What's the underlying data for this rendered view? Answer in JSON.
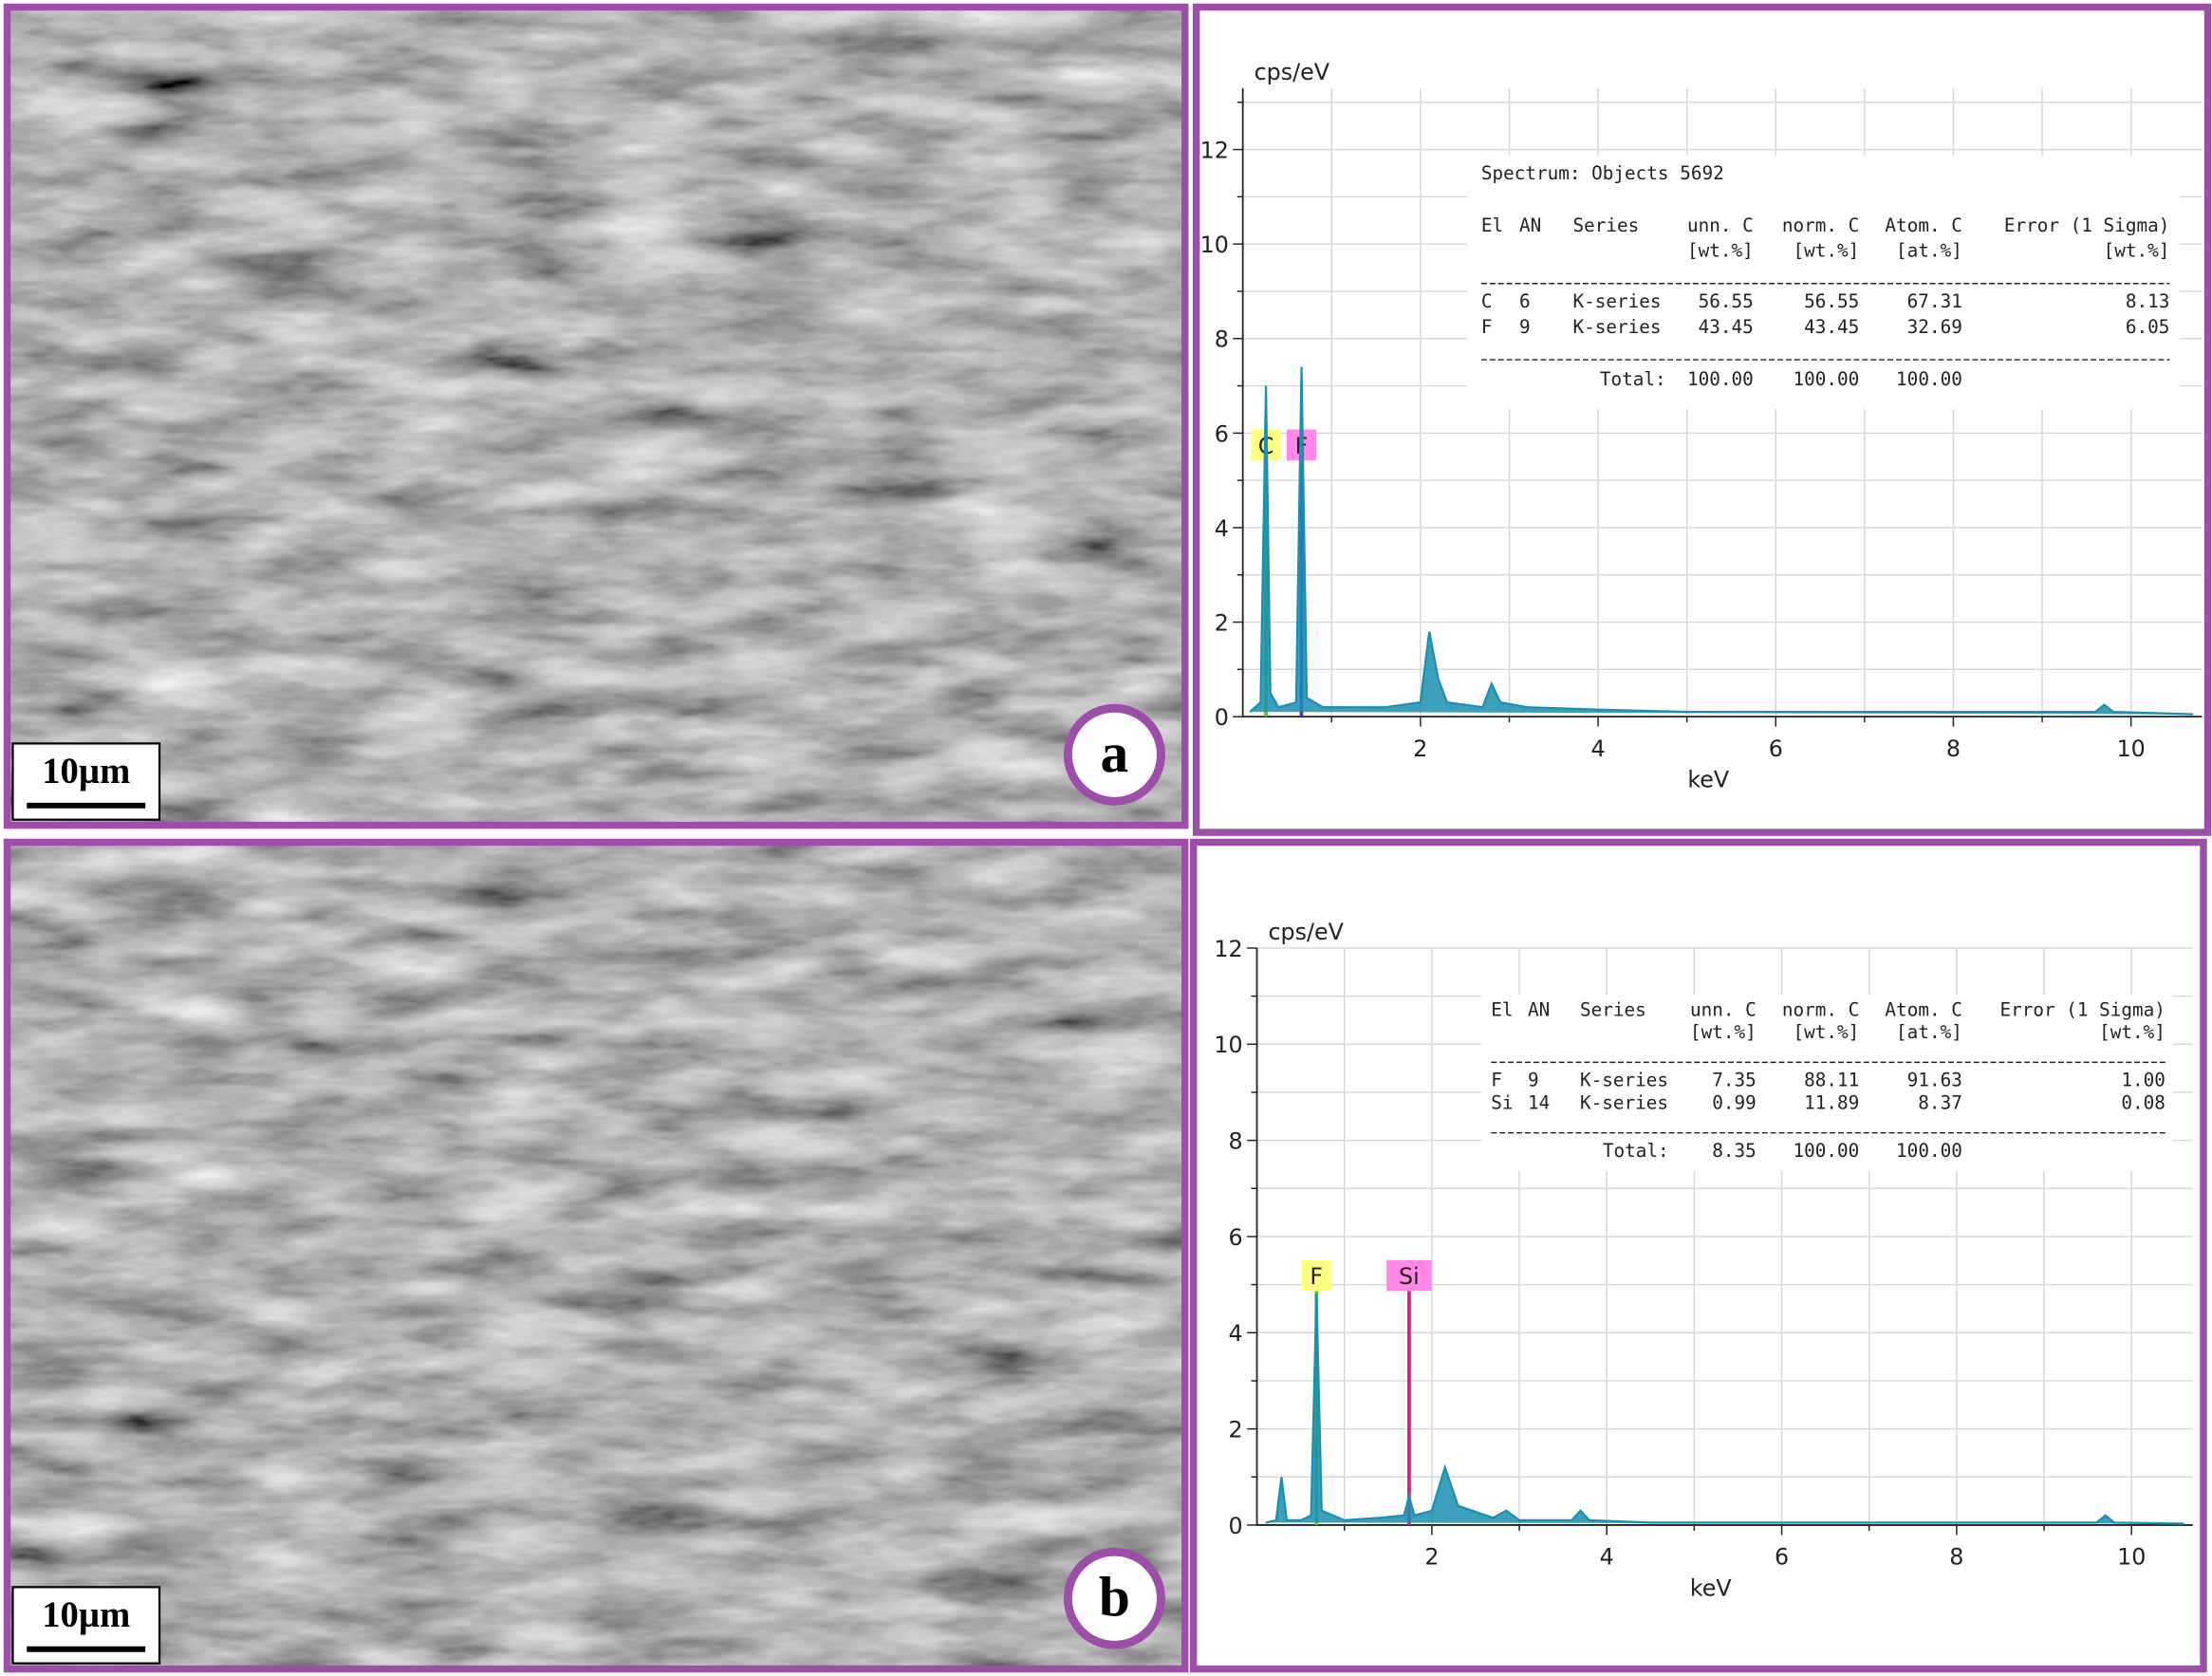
{
  "panels": [
    {
      "label": "a",
      "scale_bar": "10µm",
      "spectrum": {
        "type": "line",
        "ylabel": "cps/eV",
        "xlabel": "keV",
        "xlim": [
          0,
          10.8
        ],
        "ylim": [
          0,
          13.3
        ],
        "xticks": [
          2,
          4,
          6,
          8,
          10
        ],
        "yticks": [
          0,
          2,
          4,
          6,
          8,
          10,
          12
        ],
        "xminor": [
          1,
          3,
          5,
          7,
          9
        ],
        "yminor": [
          1,
          3,
          5,
          7,
          9,
          11,
          13
        ],
        "grid": true,
        "color": "#1a8fb0",
        "x": [
          0.08,
          0.2,
          0.26,
          0.31,
          0.4,
          0.6,
          0.66,
          0.72,
          0.9,
          1.2,
          1.6,
          2.0,
          2.1,
          2.2,
          2.3,
          2.7,
          2.8,
          2.9,
          3.2,
          4,
          5,
          6,
          7,
          8,
          9,
          9.6,
          9.7,
          9.8,
          10.7
        ],
        "values": [
          0.1,
          0.3,
          7.0,
          0.5,
          0.2,
          0.3,
          7.4,
          0.4,
          0.2,
          0.2,
          0.2,
          0.3,
          1.8,
          0.8,
          0.3,
          0.2,
          0.7,
          0.3,
          0.2,
          0.15,
          0.1,
          0.1,
          0.1,
          0.1,
          0.1,
          0.1,
          0.25,
          0.1,
          0.05
        ],
        "peaks": [
          {
            "label": "C",
            "x": 0.26,
            "color": "#5cb82c",
            "box": "#ffff80"
          },
          {
            "label": "F",
            "x": 0.66,
            "color": "#3a3acc",
            "box": "#ff88e8"
          }
        ]
      },
      "table": {
        "title": "Spectrum: Objects 5692",
        "header": [
          "El",
          "AN",
          "Series",
          "unn. C",
          "norm. C",
          "Atom. C",
          "Error (1 Sigma)"
        ],
        "units": [
          "[wt.%]",
          "[wt.%]",
          "[at.%]",
          "[wt.%]"
        ],
        "rows": [
          [
            "C",
            "6",
            "K-series",
            "56.55",
            "56.55",
            "67.31",
            "8.13"
          ],
          [
            "F",
            "9",
            "K-series",
            "43.45",
            "43.45",
            "32.69",
            "6.05"
          ]
        ],
        "total_label": "Total:",
        "totals": [
          "100.00",
          "100.00",
          "100.00"
        ]
      }
    },
    {
      "label": "b",
      "scale_bar": "10µm",
      "spectrum": {
        "type": "line",
        "ylabel": "cps/eV",
        "xlabel": "keV",
        "xlim": [
          0,
          10.7
        ],
        "ylim": [
          0,
          12
        ],
        "xticks": [
          2,
          4,
          6,
          8,
          10
        ],
        "yticks": [
          0,
          2,
          4,
          6,
          8,
          10,
          12
        ],
        "xminor": [
          1,
          3,
          5,
          7,
          9
        ],
        "yminor": [
          1,
          3,
          5,
          7,
          9,
          11
        ],
        "grid": true,
        "color": "#1a8fb0",
        "x": [
          0.1,
          0.22,
          0.28,
          0.34,
          0.5,
          0.62,
          0.68,
          0.74,
          1.0,
          1.4,
          1.68,
          1.74,
          1.8,
          2.0,
          2.15,
          2.3,
          2.7,
          2.85,
          3.0,
          3.6,
          3.7,
          3.8,
          4.5,
          6,
          8,
          9.6,
          9.7,
          9.8,
          10.6
        ],
        "values": [
          0.05,
          0.1,
          1.0,
          0.1,
          0.1,
          0.2,
          4.8,
          0.3,
          0.1,
          0.15,
          0.2,
          0.6,
          0.2,
          0.3,
          1.2,
          0.4,
          0.15,
          0.3,
          0.1,
          0.1,
          0.3,
          0.1,
          0.05,
          0.05,
          0.05,
          0.05,
          0.2,
          0.05,
          0.03
        ],
        "peaks": [
          {
            "label": "F",
            "x": 0.68,
            "color": "#5cb82c",
            "box": "#ffff80"
          },
          {
            "label": "Si",
            "x": 1.74,
            "color": "#cc2288",
            "box": "#ff88e8"
          }
        ]
      },
      "table": {
        "header": [
          "El",
          "AN",
          "Series",
          "unn. C",
          "norm. C",
          "Atom. C",
          "Error (1 Sigma)"
        ],
        "units": [
          "[wt.%]",
          "[wt.%]",
          "[at.%]",
          "[wt.%]"
        ],
        "rows": [
          [
            "F",
            "9",
            "K-series",
            "7.35",
            "88.11",
            "91.63",
            "1.00"
          ],
          [
            "Si",
            "14",
            "K-series",
            "0.99",
            "11.89",
            "8.37",
            "0.08"
          ]
        ],
        "total_label": "Total:",
        "totals": [
          "8.35",
          "100.00",
          "100.00"
        ]
      }
    }
  ]
}
